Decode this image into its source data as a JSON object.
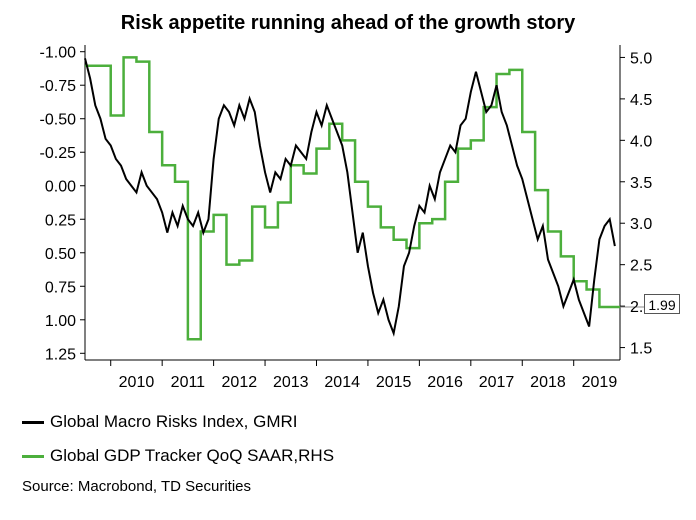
{
  "title": "Risk appetite running ahead of the growth story",
  "legend": [
    {
      "label": "Global Macro Risks Index, GMRI",
      "color": "#000000"
    },
    {
      "label": "Global GDP Tracker QoQ SAAR,RHS",
      "color": "#4caf3c"
    }
  ],
  "source": "Source: Macrobond, TD Securities",
  "callout": "1.99",
  "chart_data": {
    "type": "line",
    "title": "Risk appetite running ahead of the growth story",
    "x_tick_labels": [
      "2010",
      "2011",
      "2012",
      "2013",
      "2014",
      "2015",
      "2016",
      "2017",
      "2018",
      "2019"
    ],
    "x_range": [
      2009.5,
      2019.9
    ],
    "left_axis": {
      "tick_labels": [
        "-1.00",
        "-0.75",
        "-0.50",
        "-0.25",
        "0.00",
        "0.25",
        "0.50",
        "0.75",
        "1.00",
        "1.25"
      ],
      "ticks": [
        -1.0,
        -0.75,
        -0.5,
        -0.25,
        0.0,
        0.25,
        0.5,
        0.75,
        1.0,
        1.25
      ],
      "range": [
        -1.05,
        1.3
      ],
      "inverted": true
    },
    "right_axis": {
      "tick_labels": [
        "5.0",
        "4.5",
        "4.0",
        "3.5",
        "3.0",
        "2.5",
        "2.0",
        "1.5"
      ],
      "ticks": [
        5.0,
        4.5,
        4.0,
        3.5,
        3.0,
        2.5,
        2.0,
        1.5
      ],
      "range": [
        1.35,
        5.15
      ]
    },
    "series": [
      {
        "name": "Global Macro Risks Index, GMRI",
        "axis": "left",
        "color": "#000000",
        "x": [
          2009.5,
          2009.6,
          2009.7,
          2009.8,
          2009.9,
          2010.0,
          2010.1,
          2010.2,
          2010.3,
          2010.4,
          2010.5,
          2010.6,
          2010.7,
          2010.8,
          2010.9,
          2011.0,
          2011.1,
          2011.2,
          2011.3,
          2011.4,
          2011.5,
          2011.6,
          2011.7,
          2011.8,
          2011.9,
          2012.0,
          2012.1,
          2012.2,
          2012.3,
          2012.4,
          2012.5,
          2012.6,
          2012.7,
          2012.8,
          2012.9,
          2013.0,
          2013.1,
          2013.2,
          2013.3,
          2013.4,
          2013.5,
          2013.6,
          2013.7,
          2013.8,
          2013.9,
          2014.0,
          2014.1,
          2014.2,
          2014.3,
          2014.4,
          2014.5,
          2014.6,
          2014.7,
          2014.8,
          2014.9,
          2015.0,
          2015.1,
          2015.2,
          2015.3,
          2015.4,
          2015.5,
          2015.6,
          2015.7,
          2015.8,
          2015.9,
          2016.0,
          2016.1,
          2016.2,
          2016.3,
          2016.4,
          2016.5,
          2016.6,
          2016.7,
          2016.8,
          2016.9,
          2017.0,
          2017.1,
          2017.2,
          2017.3,
          2017.4,
          2017.5,
          2017.6,
          2017.7,
          2017.8,
          2017.9,
          2018.0,
          2018.1,
          2018.2,
          2018.3,
          2018.4,
          2018.5,
          2018.6,
          2018.7,
          2018.8,
          2018.9,
          2019.0,
          2019.1,
          2019.2,
          2019.3,
          2019.4,
          2019.5,
          2019.6,
          2019.7,
          2019.8
        ],
        "values": [
          -0.95,
          -0.8,
          -0.6,
          -0.5,
          -0.35,
          -0.3,
          -0.2,
          -0.15,
          -0.05,
          0.0,
          0.05,
          -0.1,
          0.0,
          0.05,
          0.1,
          0.2,
          0.35,
          0.2,
          0.3,
          0.15,
          0.25,
          0.3,
          0.2,
          0.35,
          0.25,
          -0.2,
          -0.5,
          -0.6,
          -0.55,
          -0.45,
          -0.6,
          -0.5,
          -0.65,
          -0.55,
          -0.3,
          -0.1,
          0.05,
          -0.1,
          -0.05,
          -0.2,
          -0.15,
          -0.3,
          -0.25,
          -0.2,
          -0.4,
          -0.55,
          -0.45,
          -0.6,
          -0.5,
          -0.4,
          -0.3,
          -0.1,
          0.2,
          0.5,
          0.35,
          0.6,
          0.8,
          0.95,
          0.85,
          1.0,
          1.1,
          0.9,
          0.6,
          0.5,
          0.3,
          0.15,
          0.2,
          0.0,
          0.1,
          -0.1,
          -0.2,
          -0.3,
          -0.25,
          -0.45,
          -0.5,
          -0.7,
          -0.85,
          -0.7,
          -0.55,
          -0.6,
          -0.75,
          -0.55,
          -0.45,
          -0.3,
          -0.15,
          -0.05,
          0.1,
          0.25,
          0.4,
          0.3,
          0.55,
          0.65,
          0.75,
          0.9,
          0.8,
          0.7,
          0.85,
          0.95,
          1.05,
          0.7,
          0.4,
          0.3,
          0.25,
          0.45
        ]
      },
      {
        "name": "Global GDP Tracker QoQ SAAR,RHS",
        "axis": "right",
        "color": "#4caf3c",
        "x": [
          2009.5,
          2009.75,
          2010.0,
          2010.25,
          2010.5,
          2010.75,
          2011.0,
          2011.25,
          2011.5,
          2011.75,
          2012.0,
          2012.25,
          2012.5,
          2012.75,
          2013.0,
          2013.25,
          2013.5,
          2013.75,
          2014.0,
          2014.25,
          2014.5,
          2014.75,
          2015.0,
          2015.25,
          2015.5,
          2015.75,
          2016.0,
          2016.25,
          2016.5,
          2016.75,
          2017.0,
          2017.25,
          2017.5,
          2017.75,
          2018.0,
          2018.25,
          2018.5,
          2018.75,
          2019.0,
          2019.25,
          2019.5,
          2019.75,
          2019.9
        ],
        "values": [
          4.9,
          4.9,
          4.3,
          5.0,
          4.95,
          4.1,
          3.7,
          3.5,
          1.6,
          2.9,
          3.1,
          2.5,
          2.55,
          3.2,
          2.95,
          3.25,
          3.7,
          3.6,
          3.9,
          4.2,
          4.0,
          3.5,
          3.2,
          2.95,
          2.8,
          2.7,
          3.0,
          3.05,
          3.5,
          3.9,
          4.0,
          4.4,
          4.8,
          4.85,
          4.1,
          3.4,
          2.9,
          2.6,
          2.3,
          2.2,
          1.99,
          1.99,
          1.99
        ]
      }
    ]
  }
}
